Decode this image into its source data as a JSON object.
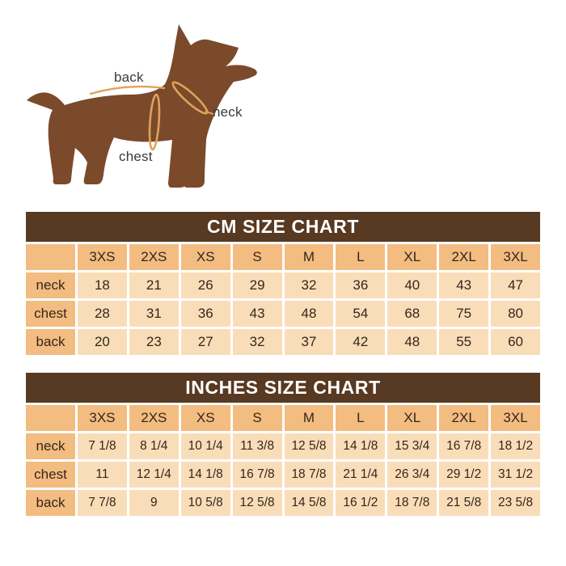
{
  "illustration": {
    "labels": {
      "back": "back",
      "neck": "neck",
      "chest": "chest"
    }
  },
  "colors": {
    "page-bg": "#FFFFFF",
    "title-bar-bg": "#583921",
    "title-bar-text": "#FFFFFF",
    "header-cell-bg": "#F3BC80",
    "data-cell-bg": "#F9DDB9",
    "cell-text": "#35261A",
    "dog-body": "#7A4A2B",
    "measure-line": "#E0A159",
    "diagram-label": "#3A3A3A"
  },
  "chart_data": [
    {
      "type": "table",
      "title": "CM SIZE CHART",
      "size_columns": [
        "3XS",
        "2XS",
        "XS",
        "S",
        "M",
        "L",
        "XL",
        "2XL",
        "3XL"
      ],
      "rows": [
        {
          "label": "neck",
          "values": [
            "18",
            "21",
            "26",
            "29",
            "32",
            "36",
            "40",
            "43",
            "47"
          ]
        },
        {
          "label": "chest",
          "values": [
            "28",
            "31",
            "36",
            "43",
            "48",
            "54",
            "68",
            "75",
            "80"
          ]
        },
        {
          "label": "back",
          "values": [
            "20",
            "23",
            "27",
            "32",
            "37",
            "42",
            "48",
            "55",
            "60"
          ]
        }
      ]
    },
    {
      "type": "table",
      "title": "INCHES SIZE CHART",
      "size_columns": [
        "3XS",
        "2XS",
        "XS",
        "S",
        "M",
        "L",
        "XL",
        "2XL",
        "3XL"
      ],
      "rows": [
        {
          "label": "neck",
          "values": [
            "7 1/8",
            "8 1/4",
            "10 1/4",
            "11 3/8",
            "12 5/8",
            "14 1/8",
            "15 3/4",
            "16 7/8",
            "18 1/2"
          ]
        },
        {
          "label": "chest",
          "values": [
            "11",
            "12 1/4",
            "14 1/8",
            "16 7/8",
            "18 7/8",
            "21 1/4",
            "26 3/4",
            "29 1/2",
            "31 1/2"
          ]
        },
        {
          "label": "back",
          "values": [
            "7 7/8",
            "9",
            "10 5/8",
            "12 5/8",
            "14 5/8",
            "16 1/2",
            "18 7/8",
            "21 5/8",
            "23 5/8"
          ]
        }
      ]
    }
  ]
}
